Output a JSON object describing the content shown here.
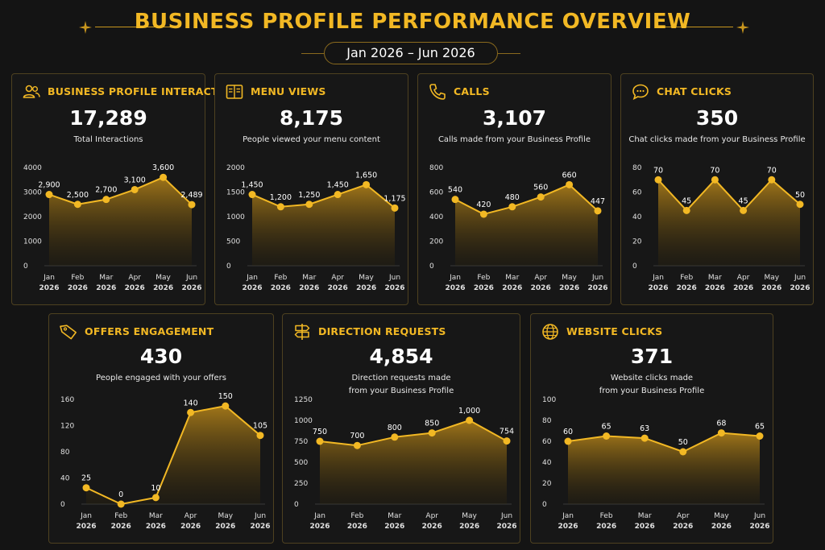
{
  "header": {
    "title": "BUSINESS PROFILE PERFORMANCE OVERVIEW",
    "date_range": "Jan 2026 – Jun 2026"
  },
  "colors": {
    "accent": "#f2b824",
    "background": "#141414",
    "card_border": "#4e4120"
  },
  "cards": [
    {
      "icon": "users-icon",
      "title": "BUSINESS PROFILE INTERACTIONS",
      "value": "17,289",
      "subtitle": "Total Interactions",
      "subtitle2": ""
    },
    {
      "icon": "menu-book-icon",
      "title": "MENU VIEWS",
      "value": "8,175",
      "subtitle": "People viewed your menu content",
      "subtitle2": ""
    },
    {
      "icon": "phone-icon",
      "title": "CALLS",
      "value": "3,107",
      "subtitle": "Calls made from your Business Profile",
      "subtitle2": ""
    },
    {
      "icon": "chat-bubble-icon",
      "title": "CHAT CLICKS",
      "value": "350",
      "subtitle": "Chat clicks made from your Business Profile",
      "subtitle2": ""
    },
    {
      "icon": "tag-icon",
      "title": "OFFERS ENGAGEMENT",
      "value": "430",
      "subtitle": "People engaged with your offers",
      "subtitle2": ""
    },
    {
      "icon": "signpost-icon",
      "title": "DIRECTION REQUESTS",
      "value": "4,854",
      "subtitle": "Direction requests made",
      "subtitle2": "from your Business Profile"
    },
    {
      "icon": "globe-icon",
      "title": "WEBSITE CLICKS",
      "value": "371",
      "subtitle": "Website clicks made",
      "subtitle2": "from your Business Profile"
    }
  ],
  "chart_data": [
    {
      "type": "area",
      "categories": [
        "Jan 2026",
        "Feb 2026",
        "Mar 2026",
        "Apr 2026",
        "May 2026",
        "Jun 2026"
      ],
      "values": [
        2900,
        2500,
        2700,
        3100,
        3600,
        2489
      ],
      "labels": [
        "2,900",
        "2,500",
        "2,700",
        "3,100",
        "3,600",
        "2,489"
      ],
      "ylim": [
        0,
        4000
      ],
      "yticks": [
        0,
        1000,
        2000,
        3000,
        4000
      ],
      "ytick_labels": [
        "0",
        "1000",
        "2000",
        "3000",
        "4000"
      ]
    },
    {
      "type": "area",
      "categories": [
        "Jan 2026",
        "Feb 2026",
        "Mar 2026",
        "Apr 2026",
        "May 2026",
        "Jun 2026"
      ],
      "values": [
        1450,
        1200,
        1250,
        1450,
        1650,
        1175
      ],
      "labels": [
        "1,450",
        "1,200",
        "1,250",
        "1,450",
        "1,650",
        "1,175"
      ],
      "ylim": [
        0,
        2000
      ],
      "yticks": [
        0,
        500,
        1000,
        1500,
        2000
      ],
      "ytick_labels": [
        "0",
        "500",
        "1000",
        "1500",
        "2000"
      ]
    },
    {
      "type": "area",
      "categories": [
        "Jan 2026",
        "Feb 2026",
        "Mar 2026",
        "Apr 2026",
        "May 2026",
        "Jun 2026"
      ],
      "values": [
        540,
        420,
        480,
        560,
        660,
        447
      ],
      "labels": [
        "540",
        "420",
        "480",
        "560",
        "660",
        "447"
      ],
      "ylim": [
        0,
        800
      ],
      "yticks": [
        0,
        200,
        400,
        600,
        800
      ],
      "ytick_labels": [
        "0",
        "200",
        "400",
        "600",
        "800"
      ]
    },
    {
      "type": "area",
      "categories": [
        "Jan 2026",
        "Feb 2026",
        "Mar 2026",
        "Apr 2026",
        "May 2026",
        "Jun 2026"
      ],
      "values": [
        70,
        45,
        70,
        45,
        70,
        50
      ],
      "labels": [
        "70",
        "45",
        "70",
        "45",
        "70",
        "50"
      ],
      "ylim": [
        0,
        80
      ],
      "yticks": [
        0,
        20,
        40,
        60,
        80
      ],
      "ytick_labels": [
        "0",
        "20",
        "40",
        "60",
        "80"
      ]
    },
    {
      "type": "area",
      "categories": [
        "Jan 2026",
        "Feb 2026",
        "Mar 2026",
        "Apr 2026",
        "May 2026",
        "Jun 2026"
      ],
      "values": [
        25,
        0,
        10,
        140,
        150,
        105
      ],
      "labels": [
        "25",
        "0",
        "10",
        "140",
        "150",
        "105"
      ],
      "ylim": [
        0,
        160
      ],
      "yticks": [
        0,
        40,
        80,
        120,
        160
      ],
      "ytick_labels": [
        "0",
        "40",
        "80",
        "120",
        "160"
      ]
    },
    {
      "type": "area",
      "categories": [
        "Jan 2026",
        "Feb 2026",
        "Mar 2026",
        "Apr 2026",
        "May 2026",
        "Jun 2026"
      ],
      "values": [
        750,
        700,
        800,
        850,
        1000,
        754
      ],
      "labels": [
        "750",
        "700",
        "800",
        "850",
        "1,000",
        "754"
      ],
      "ylim": [
        0,
        1250
      ],
      "yticks": [
        0,
        250,
        500,
        750,
        1000,
        1250
      ],
      "ytick_labels": [
        "0",
        "250",
        "500",
        "750",
        "1000",
        "1250"
      ]
    },
    {
      "type": "area",
      "categories": [
        "Jan 2026",
        "Feb 2026",
        "Mar 2026",
        "Apr 2026",
        "May 2026",
        "Jun 2026"
      ],
      "values": [
        60,
        65,
        63,
        50,
        68,
        65
      ],
      "labels": [
        "60",
        "65",
        "63",
        "50",
        "68",
        "65"
      ],
      "ylim": [
        0,
        100
      ],
      "yticks": [
        0,
        20,
        40,
        60,
        80,
        100
      ],
      "ytick_labels": [
        "0",
        "20",
        "40",
        "60",
        "80",
        "100"
      ]
    }
  ]
}
